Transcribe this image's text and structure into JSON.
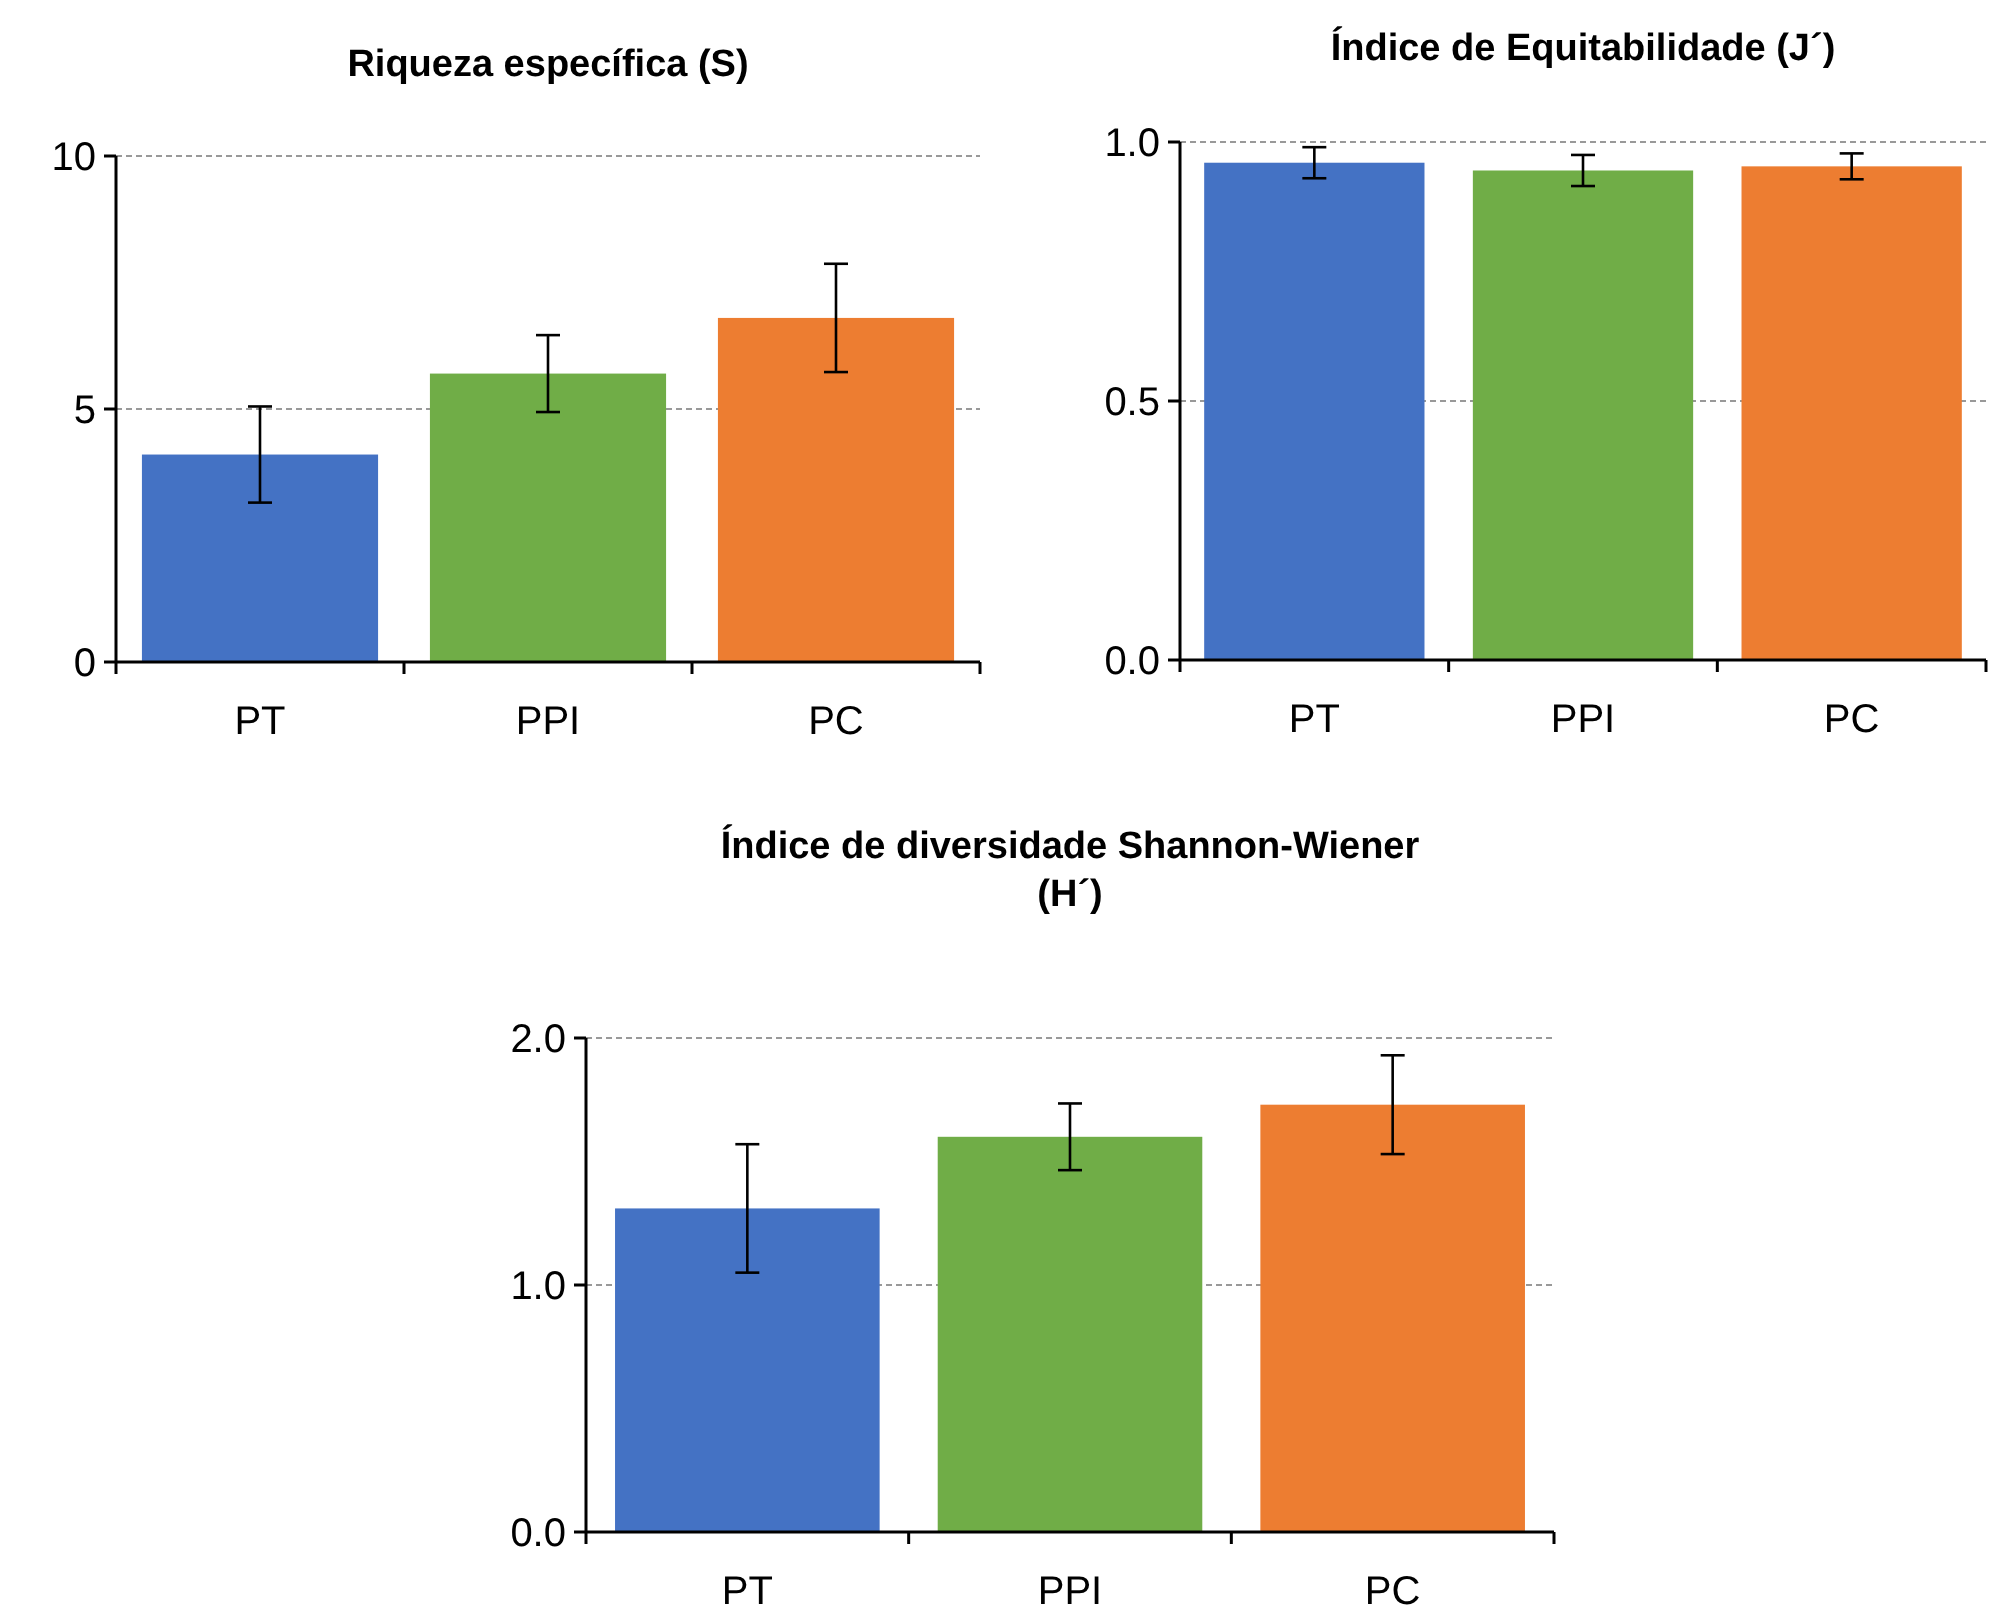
{
  "chart_data": [
    {
      "type": "bar",
      "title": "Riqueza específica (S)",
      "categories": [
        "PT",
        "PPI",
        "PC"
      ],
      "values": [
        4.1,
        5.7,
        6.8
      ],
      "colors": [
        "#4472c4",
        "#70ad47",
        "#ed7d31"
      ],
      "errors": [
        0.95,
        0.76,
        1.07
      ],
      "ylim": [
        0,
        10
      ],
      "yticks": [
        0,
        5,
        10
      ],
      "grid": "y"
    },
    {
      "type": "bar",
      "title": "Índice de Equitabilidade (J´)",
      "categories": [
        "PT",
        "PPI",
        "PC"
      ],
      "values": [
        0.96,
        0.945,
        0.953
      ],
      "colors": [
        "#4472c4",
        "#70ad47",
        "#ed7d31"
      ],
      "errors": [
        0.03,
        0.03,
        0.025
      ],
      "ylim": [
        0,
        1
      ],
      "yticks": [
        {
          "value": 0,
          "label": "0.0"
        },
        {
          "value": 0.5,
          "label": "0.5"
        },
        {
          "value": 1,
          "label": "1.0"
        }
      ],
      "grid": "y"
    },
    {
      "type": "bar",
      "title": "Índice de diversidade Shannon-Wiener (H´)",
      "categories": [
        "PT",
        "PPI",
        "PC"
      ],
      "values": [
        1.31,
        1.6,
        1.73
      ],
      "colors": [
        "#4472c4",
        "#70ad47",
        "#ed7d31"
      ],
      "errors": [
        0.26,
        0.135,
        0.2
      ],
      "ylim": [
        0,
        2
      ],
      "yticks": [
        {
          "value": 0,
          "label": "0.0"
        },
        {
          "value": 1,
          "label": "1.0"
        },
        {
          "value": 2,
          "label": "2.0"
        }
      ],
      "grid": "y"
    }
  ]
}
